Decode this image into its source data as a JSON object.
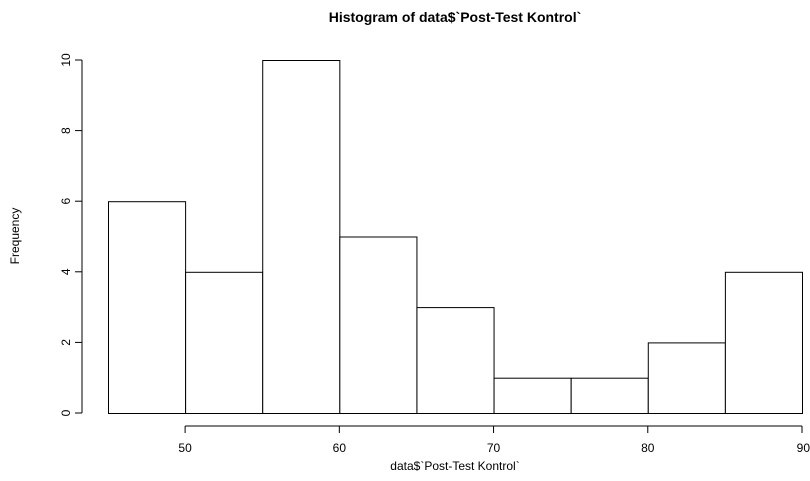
{
  "chart_data": {
    "type": "bar",
    "title": "Histogram of data$`Post-Test Kontrol`",
    "xlabel": "data$`Post-Test Kontrol`",
    "ylabel": "Frequency",
    "bins": [
      {
        "start": 45,
        "end": 50,
        "count": 6
      },
      {
        "start": 50,
        "end": 55,
        "count": 4
      },
      {
        "start": 55,
        "end": 60,
        "count": 10
      },
      {
        "start": 60,
        "end": 65,
        "count": 5
      },
      {
        "start": 65,
        "end": 70,
        "count": 3
      },
      {
        "start": 70,
        "end": 75,
        "count": 1
      },
      {
        "start": 75,
        "end": 80,
        "count": 1
      },
      {
        "start": 80,
        "end": 85,
        "count": 2
      },
      {
        "start": 85,
        "end": 90,
        "count": 4
      }
    ],
    "xlim": [
      45,
      90
    ],
    "ylim": [
      0,
      10
    ],
    "x_ticks": [
      50,
      60,
      70,
      80,
      90
    ],
    "y_ticks": [
      0,
      2,
      4,
      6,
      8,
      10
    ],
    "grid": false,
    "bar_fill": "#ffffff",
    "bar_stroke": "#000000"
  }
}
